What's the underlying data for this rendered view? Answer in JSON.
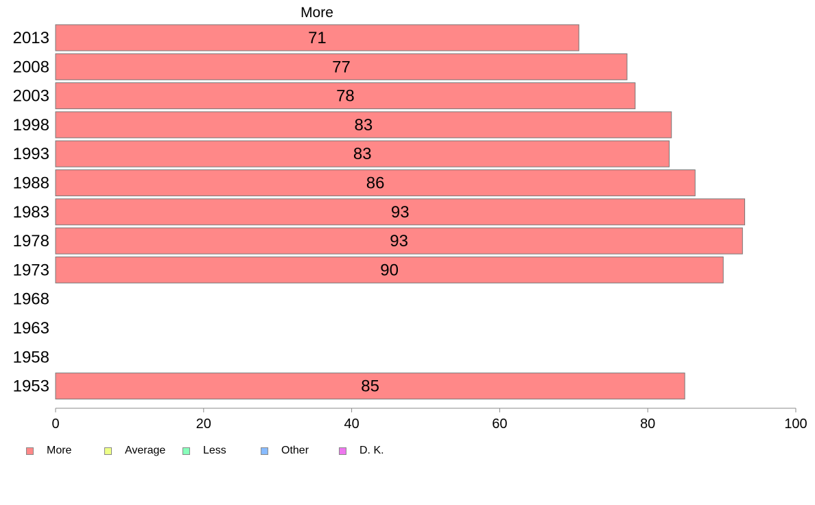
{
  "chart_data": {
    "type": "bar",
    "orientation": "horizontal",
    "title": "More",
    "categories": [
      "2013",
      "2008",
      "2003",
      "1998",
      "1993",
      "1988",
      "1983",
      "1978",
      "1973",
      "1968",
      "1963",
      "1958",
      "1953"
    ],
    "series": [
      {
        "name": "More",
        "color": "#ff8888",
        "values": [
          70.7,
          77.2,
          78.3,
          83.2,
          82.9,
          86.4,
          93.1,
          92.8,
          90.2,
          null,
          null,
          null,
          85.0
        ],
        "labels": [
          "71",
          "77",
          "78",
          "83",
          "83",
          "86",
          "93",
          "93",
          "90",
          "",
          "",
          "",
          "85"
        ]
      }
    ],
    "xlim": [
      0,
      100
    ],
    "xticks": [
      "0",
      "20",
      "40",
      "60",
      "80",
      "100"
    ],
    "grid": false,
    "legend": {
      "position": "bottom-left",
      "items": [
        {
          "label": "More",
          "color": "#ff8888"
        },
        {
          "label": "Average",
          "color": "#eeff88"
        },
        {
          "label": "Less",
          "color": "#88ffbb"
        },
        {
          "label": "Other",
          "color": "#88bbff"
        },
        {
          "label": "D. K.",
          "color": "#ee77ee"
        }
      ]
    }
  }
}
